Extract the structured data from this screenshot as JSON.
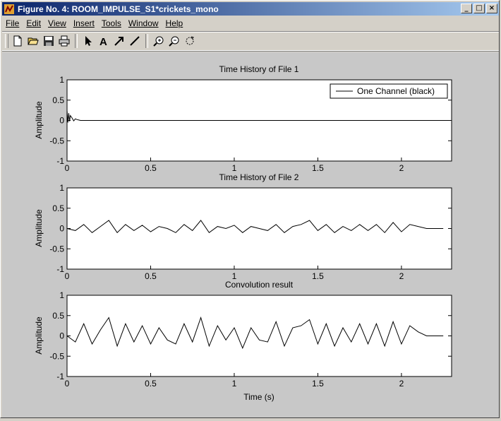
{
  "window": {
    "title": "Figure No. 4: ROOM_IMPULSE_S1*crickets_mono",
    "buttons": {
      "minimize": "_",
      "maximize": "□",
      "close": "×"
    }
  },
  "menu": [
    {
      "key": "File",
      "label": "File"
    },
    {
      "key": "Edit",
      "label": "Edit"
    },
    {
      "key": "View",
      "label": "View"
    },
    {
      "key": "Insert",
      "label": "Insert"
    },
    {
      "key": "Tools",
      "label": "Tools"
    },
    {
      "key": "Window",
      "label": "Window"
    },
    {
      "key": "Help",
      "label": "Help"
    }
  ],
  "toolbar": [
    "new-file-icon",
    "open-folder-icon",
    "save-icon",
    "print-icon",
    "arrow-select-icon",
    "text-icon",
    "arrow-draw-icon",
    "line-draw-icon",
    "zoom-in-icon",
    "zoom-out-icon",
    "rotate-icon"
  ],
  "toolbar_text_glyph": "A",
  "chart_data": [
    {
      "type": "line",
      "title": "Time History of File 1",
      "xlabel": "",
      "ylabel": "Amplitude",
      "xlim": [
        0,
        2.3
      ],
      "ylim": [
        -1,
        1
      ],
      "xticks": [
        "0",
        "0.5",
        "1",
        "1.5",
        "2"
      ],
      "yticks": [
        "1",
        "0.5",
        "0",
        "-0.5",
        "-1"
      ],
      "legend": "One Channel (black)",
      "legend_position": "top-right",
      "series": [
        {
          "name": "One Channel (black)",
          "color": "#000000",
          "x": [
            0,
            0.005,
            0.01,
            0.015,
            0.02,
            0.03,
            0.04,
            0.05,
            0.06,
            0.07,
            0.08,
            0.1,
            2.3
          ],
          "y": [
            0.25,
            -0.05,
            0.18,
            -0.02,
            0.12,
            0.06,
            -0.01,
            0.04,
            0.02,
            0.01,
            0.0,
            0,
            0
          ]
        }
      ]
    },
    {
      "type": "line",
      "title": "Time History of File 2",
      "xlabel": "",
      "ylabel": "Amplitude",
      "xlim": [
        0,
        2.3
      ],
      "ylim": [
        -1,
        1
      ],
      "xticks": [
        "0",
        "0.5",
        "1",
        "1.5",
        "2"
      ],
      "yticks": [
        "1",
        "0.5",
        "0",
        "-0.5",
        "-1"
      ],
      "series": [
        {
          "color": "#000000",
          "x": [
            0,
            0.05,
            0.1,
            0.15,
            0.2,
            0.25,
            0.3,
            0.35,
            0.4,
            0.45,
            0.5,
            0.55,
            0.6,
            0.65,
            0.7,
            0.75,
            0.8,
            0.85,
            0.9,
            0.95,
            1.0,
            1.05,
            1.1,
            1.15,
            1.2,
            1.25,
            1.3,
            1.35,
            1.4,
            1.45,
            1.5,
            1.55,
            1.6,
            1.65,
            1.7,
            1.75,
            1.8,
            1.85,
            1.9,
            1.95,
            2.0,
            2.05,
            2.1,
            2.15,
            2.2,
            2.25
          ],
          "y": [
            0,
            -0.05,
            0.1,
            -0.1,
            0.05,
            0.2,
            -0.1,
            0.1,
            -0.05,
            0.08,
            -0.08,
            0.05,
            0.0,
            -0.1,
            0.1,
            -0.05,
            0.2,
            -0.1,
            0.05,
            0.0,
            0.08,
            -0.1,
            0.05,
            0.0,
            -0.05,
            0.1,
            -0.1,
            0.05,
            0.1,
            0.2,
            -0.05,
            0.1,
            -0.1,
            0.05,
            -0.05,
            0.1,
            -0.05,
            0.1,
            -0.1,
            0.15,
            -0.08,
            0.1,
            0.05,
            0.0,
            0.0,
            0.0
          ]
        }
      ]
    },
    {
      "type": "line",
      "title": "Convolution result",
      "xlabel": "Time (s)",
      "ylabel": "Amplitude",
      "xlim": [
        0,
        2.3
      ],
      "ylim": [
        -1,
        1
      ],
      "xticks": [
        "0",
        "0.5",
        "1",
        "1.5",
        "2"
      ],
      "yticks": [
        "1",
        "0.5",
        "0",
        "-0.5",
        "-1"
      ],
      "series": [
        {
          "color": "#000000",
          "x": [
            0,
            0.05,
            0.1,
            0.15,
            0.2,
            0.25,
            0.3,
            0.35,
            0.4,
            0.45,
            0.5,
            0.55,
            0.6,
            0.65,
            0.7,
            0.75,
            0.8,
            0.85,
            0.9,
            0.95,
            1.0,
            1.05,
            1.1,
            1.15,
            1.2,
            1.25,
            1.3,
            1.35,
            1.4,
            1.45,
            1.5,
            1.55,
            1.6,
            1.65,
            1.7,
            1.75,
            1.8,
            1.85,
            1.9,
            1.95,
            2.0,
            2.05,
            2.1,
            2.15,
            2.2,
            2.25
          ],
          "y": [
            0,
            -0.15,
            0.3,
            -0.2,
            0.15,
            0.45,
            -0.25,
            0.3,
            -0.15,
            0.25,
            -0.2,
            0.2,
            -0.1,
            -0.2,
            0.3,
            -0.15,
            0.45,
            -0.25,
            0.25,
            -0.1,
            0.2,
            -0.3,
            0.2,
            -0.1,
            -0.15,
            0.35,
            -0.25,
            0.2,
            0.25,
            0.4,
            -0.2,
            0.3,
            -0.25,
            0.2,
            -0.15,
            0.3,
            -0.2,
            0.3,
            -0.25,
            0.35,
            -0.2,
            0.25,
            0.1,
            0.0,
            0.0,
            0.0
          ]
        }
      ]
    }
  ]
}
